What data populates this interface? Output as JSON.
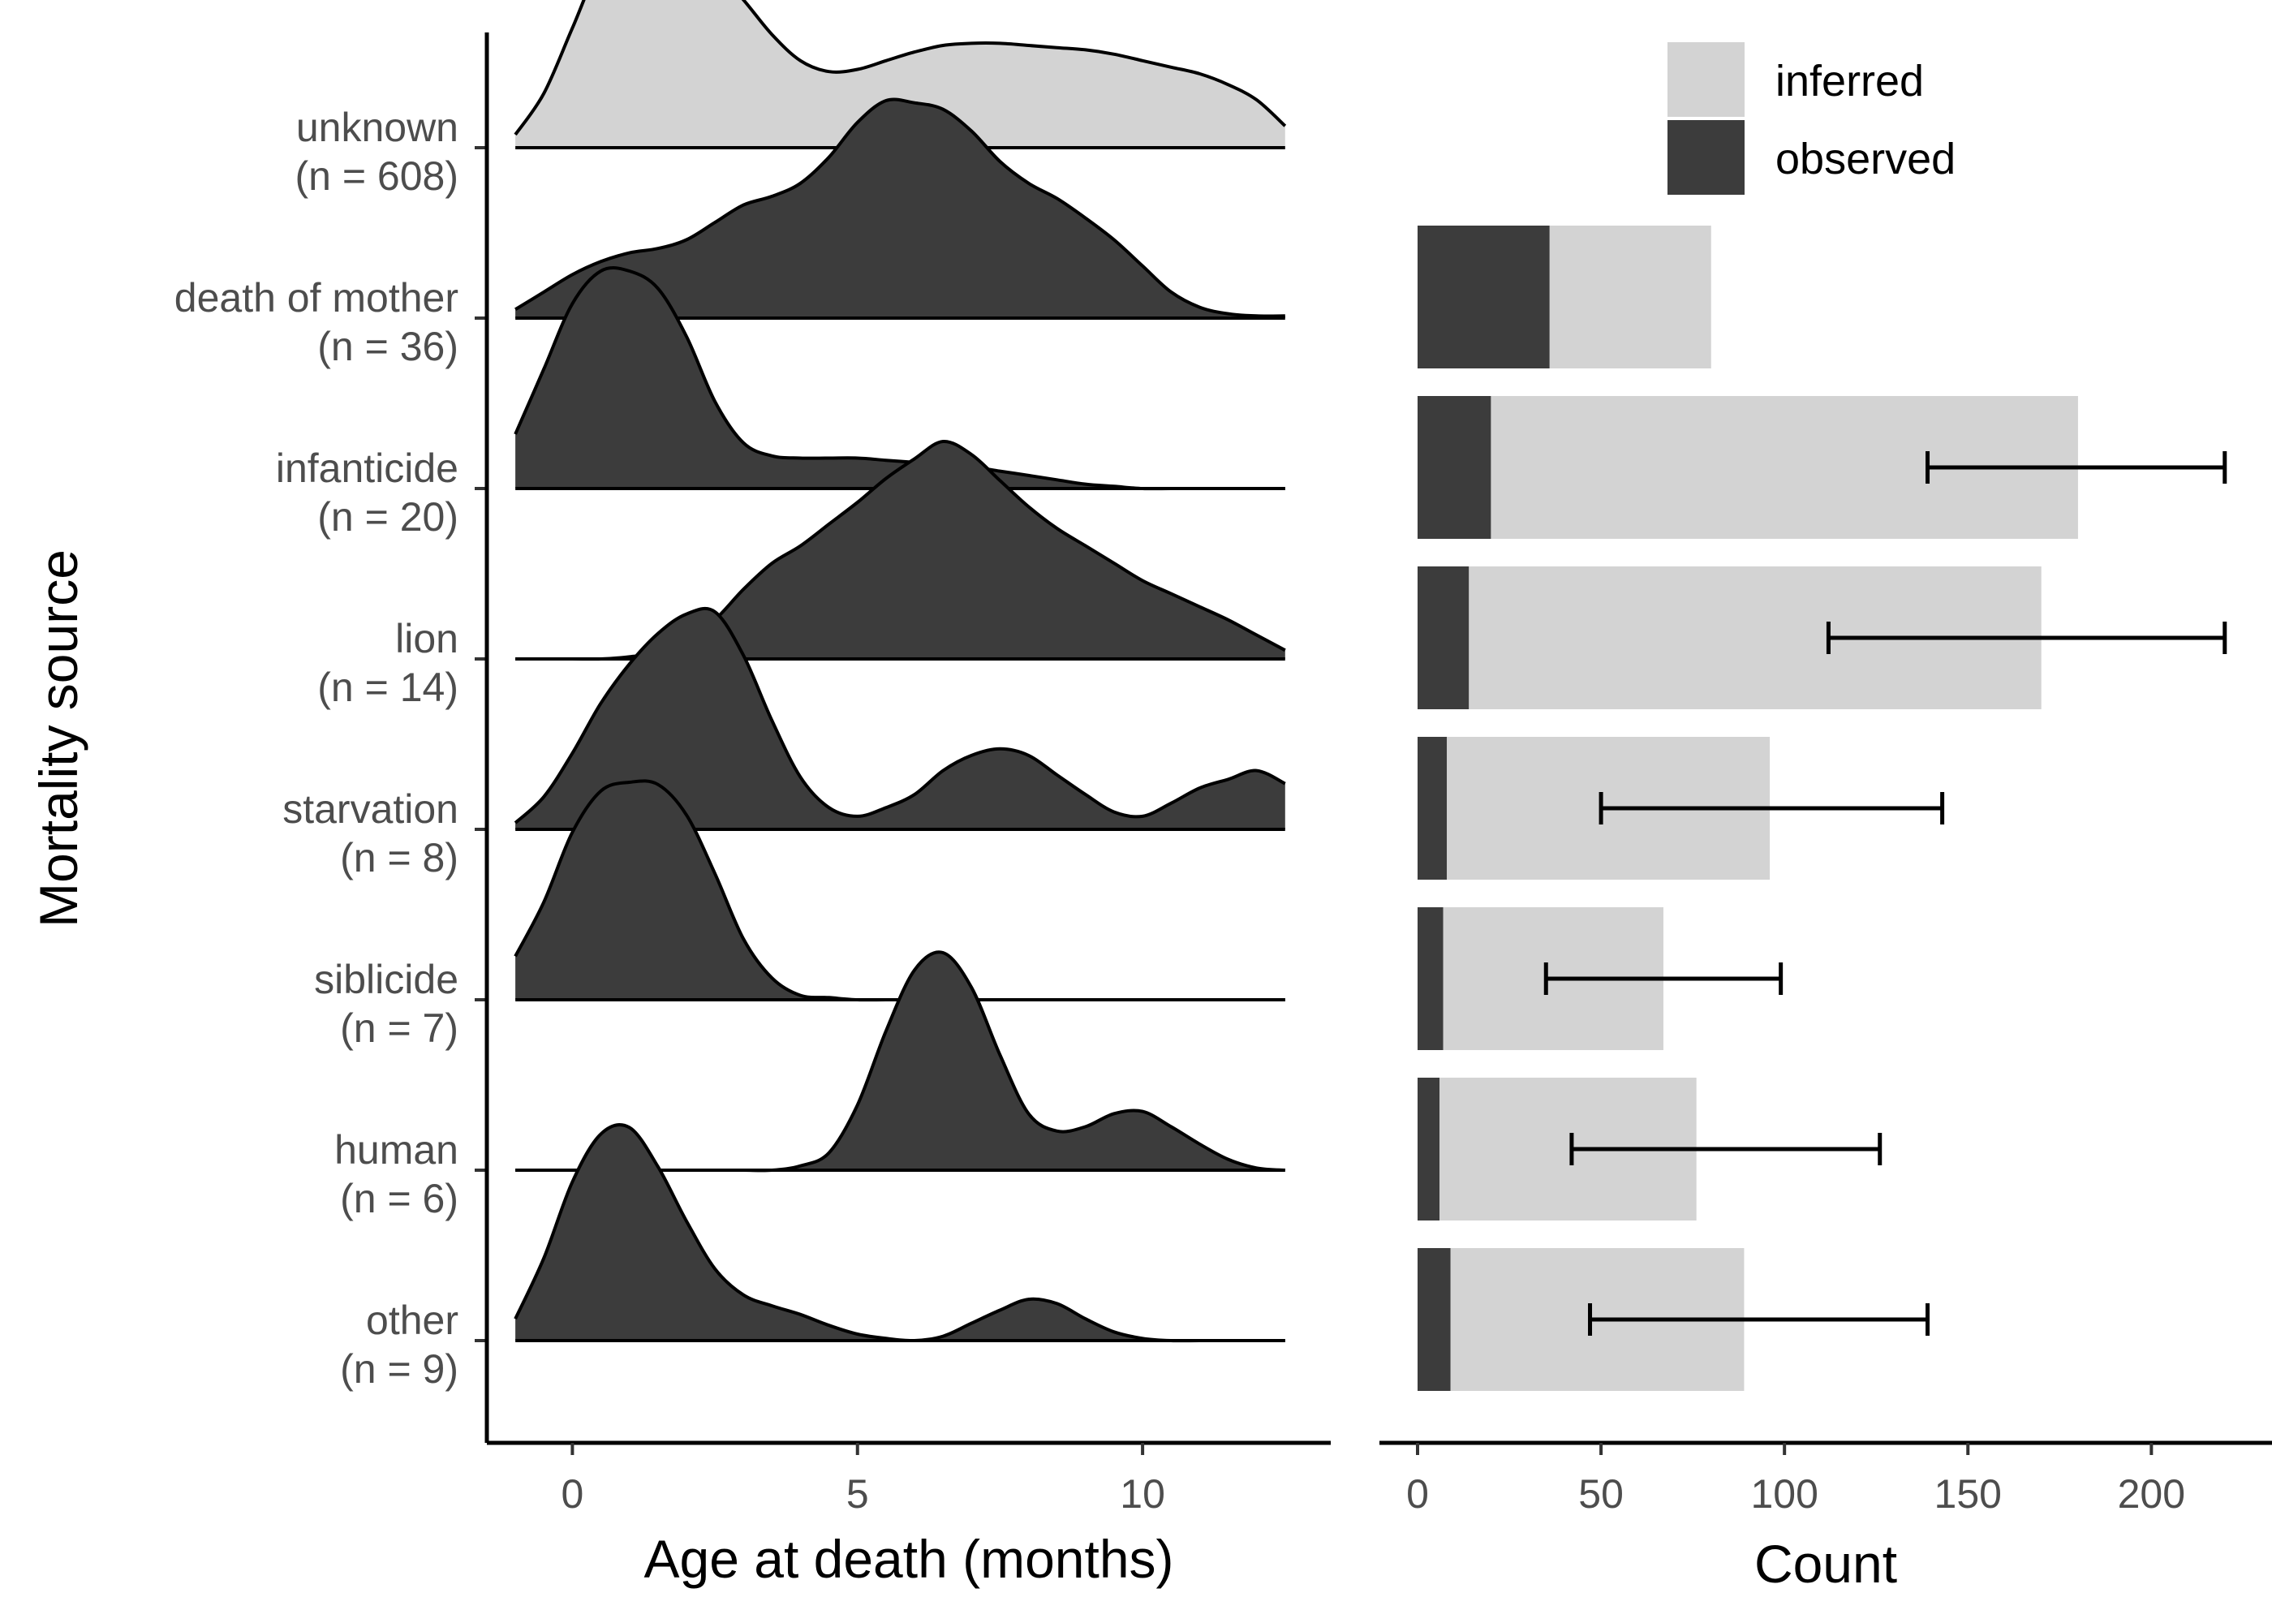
{
  "colors": {
    "observed": "#3c3c3c",
    "inferred": "#d3d3d3",
    "line": "#000000",
    "tick_text": "#4d4d4d"
  },
  "chart_data": [
    {
      "type": "area",
      "subtype": "ridgeline-density",
      "title": "",
      "xlabel": "Age at death (months)",
      "ylabel": "Mortality source",
      "xlim": [
        -1.5,
        13.3
      ],
      "x_ticks": [
        "0",
        "5",
        "10"
      ],
      "grid": false,
      "x": [
        -1,
        -0.5,
        0,
        0.5,
        1,
        1.5,
        2,
        2.5,
        3,
        3.5,
        4,
        4.5,
        5,
        5.5,
        6,
        6.5,
        7,
        7.5,
        8,
        8.5,
        9,
        9.5,
        10,
        10.5,
        11,
        11.5,
        12,
        12.5
      ],
      "series": [
        {
          "category": "unknown",
          "label_line1": "unknown",
          "label_line2": "(n = 608)",
          "fill": "inferred",
          "density": [
            0.06,
            0.25,
            0.55,
            0.85,
            0.98,
            1.0,
            0.95,
            0.82,
            0.68,
            0.52,
            0.4,
            0.35,
            0.36,
            0.4,
            0.44,
            0.47,
            0.48,
            0.48,
            0.47,
            0.46,
            0.45,
            0.43,
            0.4,
            0.37,
            0.34,
            0.29,
            0.22,
            0.1
          ]
        },
        {
          "category": "death of mother",
          "label_line1": "death of mother",
          "label_line2": "(n = 36)",
          "fill": "observed",
          "density": [
            0.04,
            0.12,
            0.2,
            0.26,
            0.3,
            0.32,
            0.36,
            0.44,
            0.52,
            0.56,
            0.62,
            0.74,
            0.9,
            1.0,
            0.99,
            0.96,
            0.86,
            0.72,
            0.62,
            0.55,
            0.46,
            0.36,
            0.24,
            0.12,
            0.05,
            0.02,
            0.01,
            0.01
          ]
        },
        {
          "category": "infanticide",
          "label_line1": "infanticide",
          "label_line2": "(n = 20)",
          "fill": "observed",
          "density": [
            0.25,
            0.55,
            0.85,
            1.0,
            1.0,
            0.92,
            0.7,
            0.4,
            0.21,
            0.15,
            0.14,
            0.14,
            0.14,
            0.13,
            0.12,
            0.11,
            0.1,
            0.08,
            0.06,
            0.04,
            0.02,
            0.01,
            0.0,
            0.0,
            0.0,
            0.0,
            0.0,
            0.0
          ]
        },
        {
          "category": "lion",
          "label_line1": "lion",
          "label_line2": "(n = 14)",
          "fill": "observed",
          "density": [
            0.0,
            0.0,
            0.0,
            0.0,
            0.01,
            0.03,
            0.08,
            0.18,
            0.32,
            0.44,
            0.52,
            0.62,
            0.72,
            0.83,
            0.92,
            1.0,
            0.94,
            0.82,
            0.7,
            0.6,
            0.52,
            0.44,
            0.36,
            0.3,
            0.24,
            0.18,
            0.11,
            0.04
          ]
        },
        {
          "category": "starvation",
          "label_line1": "starvation",
          "label_line2": "(n = 8)",
          "fill": "observed",
          "density": [
            0.03,
            0.15,
            0.35,
            0.58,
            0.76,
            0.9,
            0.99,
            1.0,
            0.8,
            0.5,
            0.24,
            0.1,
            0.06,
            0.1,
            0.16,
            0.27,
            0.34,
            0.37,
            0.34,
            0.25,
            0.16,
            0.08,
            0.06,
            0.12,
            0.19,
            0.23,
            0.27,
            0.21
          ]
        },
        {
          "category": "siblicide",
          "label_line1": "siblicide",
          "label_line2": "(n = 7)",
          "fill": "observed",
          "density": [
            0.2,
            0.45,
            0.77,
            0.96,
            1.0,
            0.99,
            0.85,
            0.58,
            0.28,
            0.1,
            0.02,
            0.01,
            0.0,
            0.0,
            0.0,
            0.0,
            0.0,
            0.0,
            0.0,
            0.0,
            0.0,
            0.0,
            0.0,
            0.0,
            0.0,
            0.0,
            0.0,
            0.0
          ]
        },
        {
          "category": "human",
          "label_line1": "human",
          "label_line2": "(n = 6)",
          "fill": "observed",
          "density": [
            0.0,
            0.0,
            0.0,
            0.0,
            0.0,
            0.0,
            0.0,
            0.0,
            0.0,
            0.0,
            0.02,
            0.08,
            0.3,
            0.64,
            0.92,
            1.0,
            0.84,
            0.53,
            0.26,
            0.18,
            0.2,
            0.26,
            0.27,
            0.2,
            0.12,
            0.05,
            0.01,
            0.0
          ]
        },
        {
          "category": "other",
          "label_line1": "other",
          "label_line2": "(n = 9)",
          "fill": "observed",
          "density": [
            0.1,
            0.38,
            0.73,
            0.95,
            0.98,
            0.8,
            0.55,
            0.33,
            0.21,
            0.16,
            0.12,
            0.07,
            0.03,
            0.01,
            0.0,
            0.02,
            0.08,
            0.14,
            0.19,
            0.17,
            0.1,
            0.04,
            0.01,
            0.0,
            0.0,
            0.0,
            0.0,
            0.0
          ]
        }
      ]
    },
    {
      "type": "bar",
      "orientation": "horizontal",
      "stacked": true,
      "title": "",
      "xlabel": "Count",
      "ylabel": "",
      "xlim": [
        0,
        230
      ],
      "x_ticks": [
        "0",
        "50",
        "100",
        "150",
        "200"
      ],
      "grid": false,
      "legend": {
        "position": "top-right",
        "entries": [
          {
            "key": "inferred",
            "label": "inferred"
          },
          {
            "key": "observed",
            "label": "observed"
          }
        ]
      },
      "categories": [
        "death of mother",
        "infanticide",
        "lion",
        "starvation",
        "siblicide",
        "human",
        "other"
      ],
      "series": [
        {
          "name": "observed",
          "values": [
            36,
            20,
            14,
            8,
            7,
            6,
            9
          ]
        },
        {
          "name": "inferred",
          "values": [
            44,
            160,
            156,
            88,
            60,
            70,
            80
          ]
        }
      ],
      "error_bars": [
        {
          "category": "infanticide",
          "low": 139,
          "high": 220
        },
        {
          "category": "lion",
          "low": 112,
          "high": 220
        },
        {
          "category": "starvation",
          "low": 50,
          "high": 143
        },
        {
          "category": "siblicide",
          "low": 35,
          "high": 99
        },
        {
          "category": "human",
          "low": 42,
          "high": 126
        },
        {
          "category": "other",
          "low": 47,
          "high": 139
        }
      ]
    }
  ]
}
